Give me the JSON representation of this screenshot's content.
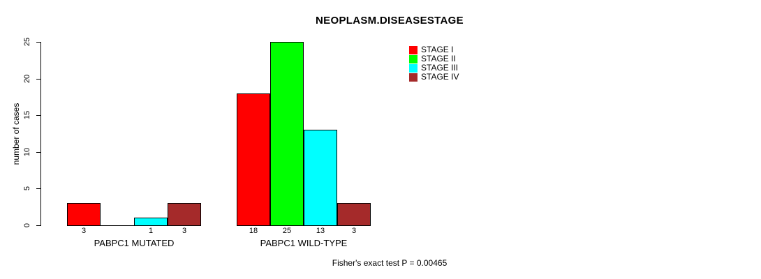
{
  "chart_data": {
    "type": "bar",
    "title": "NEOPLASM.DISEASESTAGE",
    "ylabel": "number of cases",
    "xlabel": "",
    "categories": [
      "PABPC1 MUTATED",
      "PABPC1 WILD-TYPE"
    ],
    "series": [
      {
        "name": "STAGE I",
        "color": "#ff0000",
        "values": [
          3,
          18
        ]
      },
      {
        "name": "STAGE II",
        "color": "#00ff00",
        "values": [
          0,
          25
        ]
      },
      {
        "name": "STAGE III",
        "color": "#00ffff",
        "values": [
          1,
          13
        ]
      },
      {
        "name": "STAGE IV",
        "color": "#a52a2a",
        "values": [
          3,
          3
        ]
      }
    ],
    "ylim": [
      0,
      25
    ],
    "yticks": [
      0,
      5,
      10,
      15,
      20,
      25
    ],
    "grid": false,
    "legend_position": "top-right",
    "bar_labels_shown_only_when_nonzero": true,
    "annotation": "Fisher's exact test P = 0.00465"
  }
}
